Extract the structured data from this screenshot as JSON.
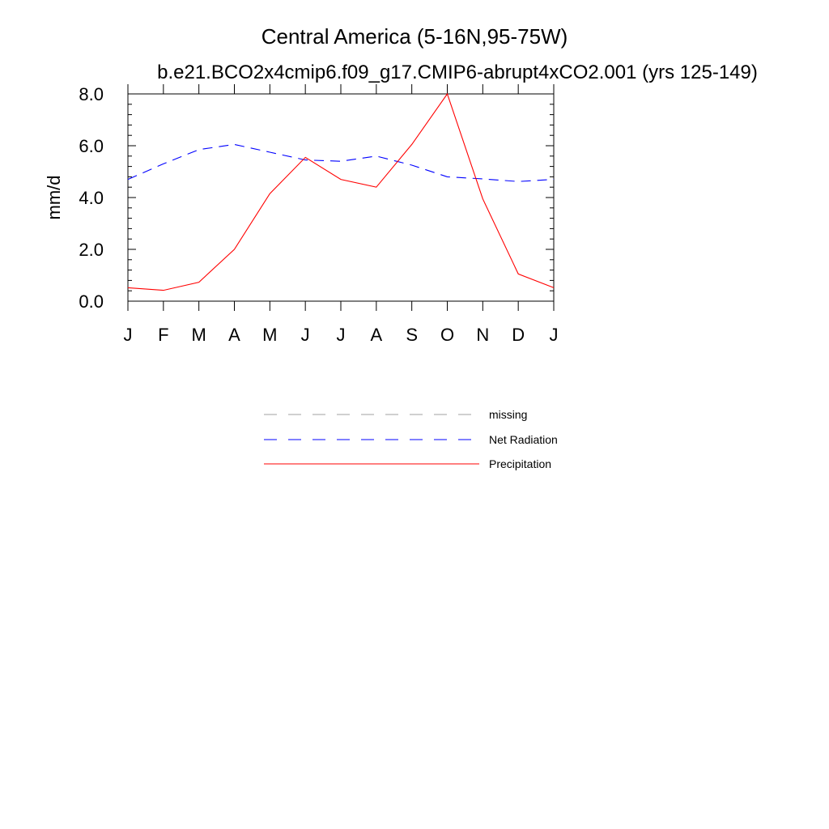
{
  "chart_data": {
    "type": "line",
    "title": "Central America (5-16N,95-75W)",
    "subtitle": "b.e21.BCO2x4cmip6.f09_g17.CMIP6-abrupt4xCO2.001 (yrs 125-149)",
    "ylabel": "mm/d",
    "xlabel": "",
    "categories": [
      "J",
      "F",
      "M",
      "A",
      "M",
      "J",
      "J",
      "A",
      "S",
      "O",
      "N",
      "D",
      "J"
    ],
    "ylim": [
      0,
      8
    ],
    "yticks": [
      "0.0",
      "2.0",
      "4.0",
      "6.0",
      "8.0"
    ],
    "grid": false,
    "legend_placement": "bottom",
    "series": [
      {
        "name": "Net Radiation",
        "color": "#0000ff",
        "dash": "dashed",
        "values": [
          4.7,
          5.3,
          5.85,
          6.05,
          5.75,
          5.45,
          5.4,
          5.6,
          5.25,
          4.8,
          4.72,
          4.62,
          4.7
        ]
      },
      {
        "name": "Precipitation",
        "color": "#ff0000",
        "dash": "solid",
        "values": [
          0.52,
          0.42,
          0.73,
          2.0,
          4.15,
          5.55,
          4.7,
          4.4,
          6.05,
          8.0,
          3.95,
          1.05,
          0.52
        ]
      }
    ],
    "legend": [
      {
        "label": "missing",
        "color": "#a0a0a0",
        "dash": "dashed"
      },
      {
        "label": "Net Radiation",
        "color": "#0000ff",
        "dash": "dashed"
      },
      {
        "label": "Precipitation",
        "color": "#ff0000",
        "dash": "solid"
      }
    ]
  }
}
